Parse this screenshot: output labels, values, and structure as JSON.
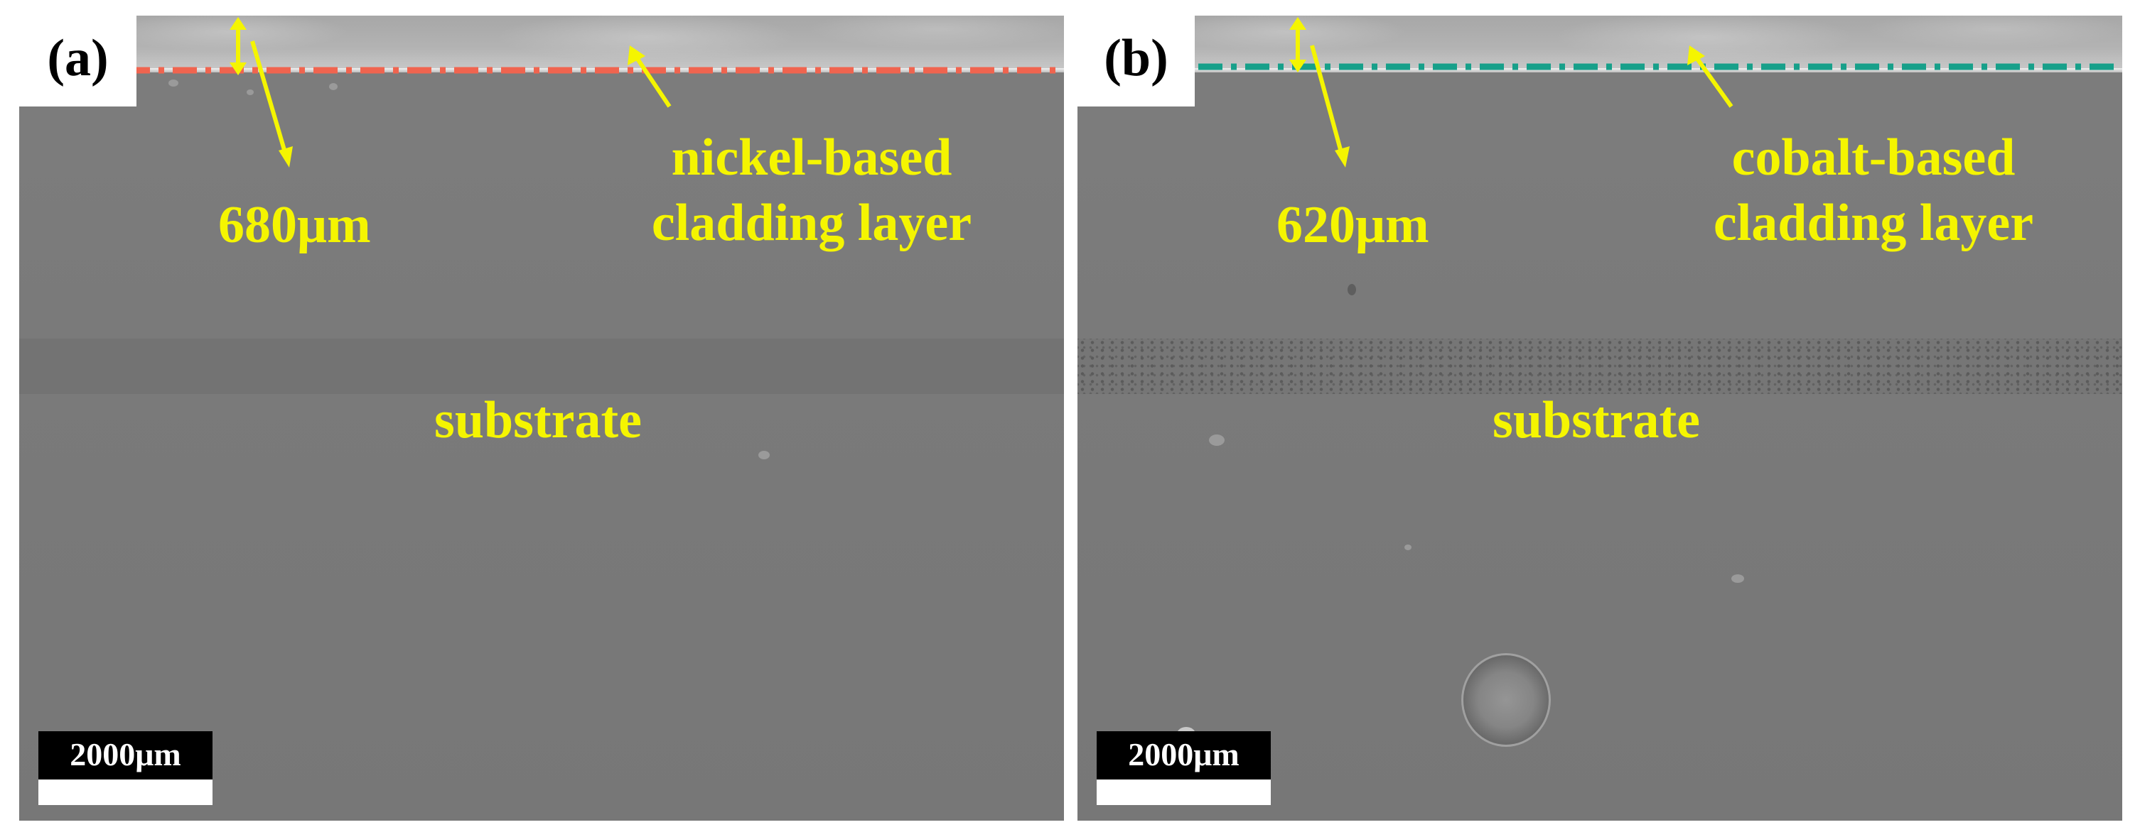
{
  "panels": [
    {
      "label": "(a)",
      "thickness": "680μm",
      "layer_line1": "nickel-based",
      "layer_line2": "cladding layer",
      "substrate": "substrate",
      "scale_bar": "2000μm",
      "interface_line_color": "#f0644f"
    },
    {
      "label": "(b)",
      "thickness": "620μm",
      "layer_line1": "cobalt-based",
      "layer_line2": "cladding layer",
      "substrate": "substrate",
      "scale_bar": "2000μm",
      "interface_line_color": "#17a08a"
    }
  ],
  "colors": {
    "annotation": "#f5f500",
    "label_background": "#ffffff",
    "scale_bar_background": "#000000"
  }
}
